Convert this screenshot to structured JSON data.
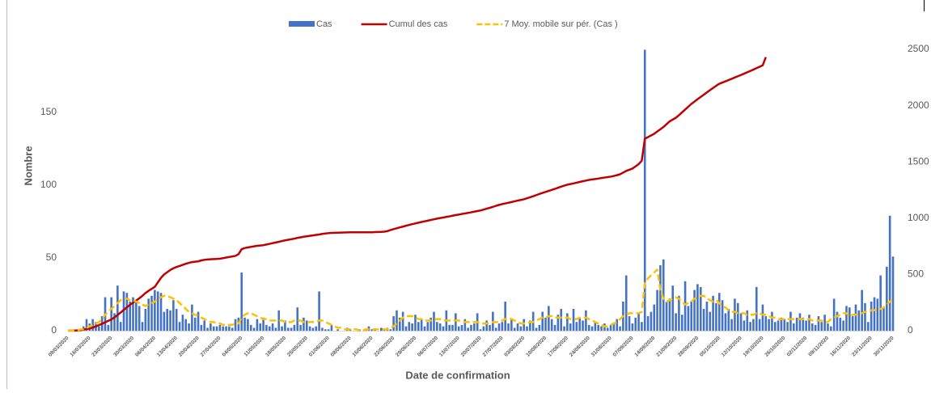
{
  "chart_data": {
    "type": "bar-line",
    "y_label": "Nombre",
    "x_label": "Date de confirmation",
    "categories": [
      "09/03/2020",
      null,
      null,
      null,
      null,
      null,
      null,
      "16/03/2020",
      null,
      null,
      null,
      null,
      null,
      null,
      "23/03/2020",
      null,
      null,
      null,
      null,
      null,
      null,
      "30/03/2020",
      null,
      null,
      null,
      null,
      null,
      null,
      "06/04/2020",
      null,
      null,
      null,
      null,
      null,
      null,
      "13/04/2020",
      null,
      null,
      null,
      null,
      null,
      null,
      "20/04/2020",
      null,
      null,
      null,
      null,
      null,
      null,
      "27/04/2020",
      null,
      null,
      null,
      null,
      null,
      null,
      "04/05/2020",
      null,
      null,
      null,
      null,
      null,
      null,
      "11/05/2020",
      null,
      null,
      null,
      null,
      null,
      null,
      "18/05/2020",
      null,
      null,
      null,
      null,
      null,
      null,
      "25/05/2020",
      null,
      null,
      null,
      null,
      null,
      null,
      "01/06/2020",
      null,
      null,
      null,
      null,
      null,
      null,
      "08/06/2020",
      null,
      null,
      null,
      null,
      null,
      null,
      "15/06/2020",
      null,
      null,
      null,
      null,
      null,
      null,
      "22/06/2020",
      null,
      null,
      null,
      null,
      null,
      null,
      "29/06/2020",
      null,
      null,
      null,
      null,
      null,
      null,
      "06/07/2020",
      null,
      null,
      null,
      null,
      null,
      null,
      "13/07/2020",
      null,
      null,
      null,
      null,
      null,
      null,
      "20/07/2020",
      null,
      null,
      null,
      null,
      null,
      null,
      "27/07/2020",
      null,
      null,
      null,
      null,
      null,
      null,
      "03/08/2020",
      null,
      null,
      null,
      null,
      null,
      null,
      "10/08/2020",
      null,
      null,
      null,
      null,
      null,
      null,
      "17/08/2020",
      null,
      null,
      null,
      null,
      null,
      null,
      "24/08/2020",
      null,
      null,
      null,
      null,
      null,
      null,
      "31/08/2020",
      null,
      null,
      null,
      null,
      null,
      null,
      "07/09/2020",
      null,
      null,
      null,
      null,
      null,
      null,
      "14/09/2020",
      null,
      null,
      null,
      null,
      null,
      null,
      "21/09/2020",
      null,
      null,
      null,
      null,
      null,
      null,
      "28/09/2020",
      null,
      null,
      null,
      null,
      null,
      null,
      "05/10/2020",
      null,
      null,
      null,
      null,
      null,
      null,
      "12/10/2020",
      null,
      null,
      null,
      null,
      null,
      null,
      "19/10/2020",
      null,
      null,
      null,
      null,
      null,
      null,
      "26/10/2020",
      null,
      null,
      null,
      null,
      null,
      null,
      "02/11/2020",
      null,
      null,
      null,
      null,
      null,
      null,
      "09/11/2020",
      null,
      null,
      null,
      null,
      null,
      null,
      "16/11/2020",
      null,
      null,
      null,
      null,
      null,
      null,
      "23/11/2020",
      null,
      null,
      null,
      null,
      null,
      null,
      "30/11/2020"
    ],
    "series": [
      {
        "name": "Cas",
        "type": "bar",
        "color": "#4472c4",
        "axis": "y",
        "values": [
          0,
          0,
          0,
          1,
          0,
          3,
          8,
          5,
          8,
          6,
          3,
          10,
          23,
          4,
          23,
          12,
          31,
          6,
          27,
          26,
          20,
          23,
          21,
          17,
          6,
          15,
          22,
          24,
          28,
          27,
          26,
          13,
          15,
          14,
          21,
          15,
          6,
          11,
          8,
          5,
          18,
          9,
          13,
          4,
          7,
          2,
          5,
          3,
          3,
          4,
          3,
          3,
          3,
          2,
          8,
          9,
          40,
          9,
          8,
          4,
          2,
          8,
          5,
          9,
          4,
          3,
          5,
          2,
          14,
          3,
          7,
          2,
          2,
          4,
          16,
          4,
          9,
          7,
          3,
          2,
          3,
          27,
          2,
          1,
          1,
          4,
          0,
          1,
          0,
          0,
          2,
          1,
          0,
          0,
          1,
          0,
          1,
          3,
          1,
          1,
          0,
          2,
          1,
          2,
          1,
          10,
          14,
          9,
          13,
          3,
          6,
          5,
          11,
          6,
          8,
          3,
          6,
          9,
          13,
          6,
          5,
          3,
          14,
          4,
          4,
          12,
          3,
          4,
          8,
          2,
          4,
          5,
          12,
          1,
          3,
          7,
          4,
          13,
          2,
          5,
          6,
          20,
          5,
          8,
          2,
          5,
          3,
          8,
          3,
          7,
          13,
          2,
          4,
          13,
          9,
          17,
          8,
          4,
          11,
          15,
          3,
          12,
          5,
          15,
          6,
          9,
          7,
          14,
          4,
          3,
          6,
          4,
          3,
          5,
          2,
          4,
          5,
          8,
          3,
          20,
          38,
          10,
          5,
          9,
          12,
          6,
          193,
          10,
          13,
          18,
          28,
          45,
          49,
          20,
          22,
          31,
          12,
          24,
          11,
          34,
          17,
          20,
          28,
          32,
          30,
          15,
          20,
          13,
          24,
          19,
          26,
          21,
          12,
          15,
          8,
          22,
          19,
          12,
          7,
          14,
          6,
          8,
          30,
          8,
          18,
          10,
          8,
          13,
          6,
          7,
          9,
          8,
          6,
          13,
          5,
          9,
          12,
          9,
          7,
          11,
          5,
          4,
          10,
          6,
          11,
          5,
          3,
          22,
          13,
          9,
          7,
          17,
          16,
          10,
          18,
          14,
          28,
          19,
          6,
          20,
          23,
          22,
          38,
          16,
          44,
          79,
          51
        ]
      },
      {
        "name": "Cumul des cas",
        "type": "line",
        "color": "#c00000",
        "axis": "y2",
        "values": [
          0,
          1,
          2,
          3,
          5,
          10,
          15,
          20,
          28,
          38,
          50,
          62,
          75,
          88,
          100,
          118,
          140,
          162,
          185,
          208,
          230,
          250,
          268,
          288,
          310,
          335,
          355,
          372,
          390,
          430,
          470,
          500,
          520,
          540,
          555,
          566,
          575,
          585,
          595,
          603,
          610,
          613,
          616,
          625,
          630,
          633,
          635,
          637,
          638,
          640,
          645,
          650,
          655,
          660,
          665,
          680,
          724,
          735,
          740,
          745,
          750,
          754,
          757,
          760,
          766,
          772,
          778,
          784,
          790,
          797,
          803,
          808,
          813,
          818,
          825,
          830,
          835,
          839,
          843,
          847,
          851,
          855,
          860,
          864,
          867,
          869,
          870,
          871,
          872,
          873,
          874,
          875,
          875,
          875,
          875,
          875,
          875,
          875,
          875,
          876,
          877,
          878,
          880,
          885,
          895,
          903,
          910,
          918,
          925,
          933,
          940,
          947,
          953,
          960,
          966,
          972,
          978,
          984,
          990,
          996,
          1001,
          1006,
          1011,
          1016,
          1022,
          1027,
          1032,
          1037,
          1042,
          1047,
          1052,
          1058,
          1063,
          1068,
          1076,
          1084,
          1092,
          1100,
          1110,
          1118,
          1125,
          1131,
          1137,
          1143,
          1150,
          1156,
          1162,
          1168,
          1177,
          1186,
          1195,
          1205,
          1215,
          1224,
          1233,
          1242,
          1251,
          1260,
          1270,
          1280,
          1289,
          1297,
          1303,
          1309,
          1315,
          1322,
          1328,
          1334,
          1340,
          1344,
          1348,
          1352,
          1357,
          1361,
          1365,
          1369,
          1375,
          1382,
          1390,
          1405,
          1420,
          1430,
          1441,
          1460,
          1480,
          1510,
          1706,
          1720,
          1735,
          1749,
          1770,
          1790,
          1810,
          1835,
          1860,
          1876,
          1892,
          1915,
          1940,
          1965,
          1990,
          2015,
          2036,
          2057,
          2077,
          2097,
          2117,
          2137,
          2157,
          2176,
          2194,
          2205,
          2216,
          2227,
          2238,
          2250,
          2261,
          2272,
          2284,
          2296,
          2308,
          2320,
          2333,
          2345,
          2358,
          2430,
          null,
          null,
          null,
          null,
          null,
          null,
          null,
          null,
          null,
          null,
          null,
          null,
          null,
          null,
          null,
          null,
          null,
          null,
          null,
          null,
          null,
          null,
          null,
          null,
          null,
          null,
          null,
          null,
          null,
          null,
          null,
          null,
          null,
          null,
          null,
          null,
          null,
          null,
          null,
          null,
          null
        ]
      },
      {
        "name": "7 Moy. mobile sur pér. (Cas )",
        "type": "line",
        "dashed": true,
        "color": "#ffc000",
        "axis": "y",
        "values": [
          0,
          0,
          0,
          0,
          1,
          1,
          2,
          3,
          4,
          5,
          6,
          8,
          11,
          13,
          15,
          17,
          19,
          21,
          22,
          22,
          21,
          21,
          20,
          19,
          18,
          17,
          18,
          19,
          20,
          22,
          23,
          24,
          24,
          23,
          22,
          21,
          19,
          17,
          15,
          13,
          12,
          11,
          10,
          9,
          8,
          7,
          6,
          6,
          5,
          5,
          4,
          4,
          4,
          4,
          5,
          5,
          9,
          11,
          12,
          12,
          11,
          10,
          9,
          8,
          8,
          7,
          7,
          7,
          7,
          7,
          6,
          6,
          6,
          7,
          7,
          7,
          6,
          6,
          6,
          6,
          6,
          7,
          7,
          6,
          5,
          4,
          3,
          2,
          2,
          1,
          1,
          1,
          1,
          1,
          0,
          0,
          1,
          1,
          1,
          1,
          1,
          1,
          1,
          1,
          2,
          3,
          5,
          7,
          9,
          10,
          10,
          10,
          9,
          8,
          8,
          7,
          7,
          7,
          8,
          8,
          8,
          7,
          7,
          7,
          7,
          7,
          7,
          6,
          6,
          6,
          6,
          6,
          6,
          5,
          5,
          5,
          5,
          6,
          6,
          6,
          7,
          8,
          9,
          8,
          7,
          6,
          5,
          5,
          5,
          6,
          6,
          7,
          8,
          9,
          9,
          10,
          10,
          9,
          9,
          9,
          9,
          9,
          8,
          8,
          8,
          9,
          9,
          9,
          8,
          7,
          6,
          5,
          4,
          3,
          3,
          4,
          5,
          6,
          8,
          10,
          11,
          12,
          12,
          12,
          12,
          13,
          33,
          36,
          38,
          40,
          42,
          28,
          22,
          20,
          21,
          22,
          23,
          22,
          20,
          18,
          19,
          20,
          22,
          23,
          24,
          24,
          22,
          21,
          20,
          21,
          19,
          17,
          16,
          14,
          13,
          13,
          12,
          12,
          12,
          11,
          11,
          11,
          12,
          12,
          11,
          11,
          10,
          9,
          9,
          8,
          8,
          8,
          8,
          8,
          8,
          8,
          8,
          8,
          8,
          8,
          7,
          7,
          7,
          7,
          6,
          6,
          8,
          9,
          10,
          11,
          12,
          12,
          10,
          11,
          11,
          12,
          12,
          13,
          13,
          14,
          14,
          15,
          15,
          16,
          18,
          20,
          22
        ]
      }
    ],
    "ylim": [
      0,
      193.3
    ],
    "yticks": [
      0,
      50,
      100,
      150
    ],
    "y2lim": [
      0,
      2500
    ],
    "y2ticks": [
      0,
      500,
      1000,
      1500,
      2000,
      2500
    ],
    "legend": "top",
    "grid": false
  }
}
